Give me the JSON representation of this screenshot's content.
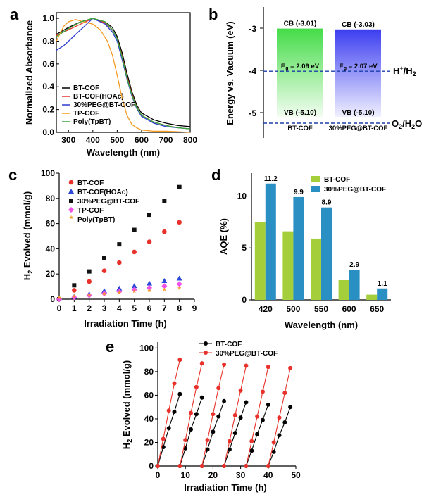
{
  "panels": {
    "a": "a",
    "b": "b",
    "c": "c",
    "d": "d",
    "e": "e"
  },
  "chart_data": [
    {
      "id": "a",
      "type": "line",
      "xlabel": "Wavelength (nm)",
      "ylabel": "Normalized Absorbance",
      "xlim": [
        250,
        800
      ],
      "ylim": [
        0,
        1.05
      ],
      "xticks": [
        300,
        400,
        500,
        600,
        700,
        800
      ],
      "yticks": [
        0.0,
        0.2,
        0.4,
        0.6,
        0.8,
        1.0
      ],
      "legend_position": "bottom-left",
      "series": [
        {
          "name": "BT-COF",
          "color": "#000000",
          "x": [
            250,
            300,
            350,
            400,
            450,
            480,
            500,
            520,
            540,
            560,
            580,
            600,
            650,
            700,
            750,
            800
          ],
          "y": [
            0.86,
            0.92,
            0.97,
            1.0,
            0.97,
            0.92,
            0.84,
            0.7,
            0.52,
            0.36,
            0.24,
            0.17,
            0.11,
            0.08,
            0.06,
            0.05
          ]
        },
        {
          "name": "BT-COF(HOAc)",
          "color": "#e8312a",
          "x": [
            250,
            300,
            350,
            400,
            450,
            480,
            500,
            520,
            540,
            560,
            580,
            600,
            650,
            700,
            750,
            800
          ],
          "y": [
            0.85,
            0.9,
            0.95,
            1.0,
            0.96,
            0.9,
            0.82,
            0.67,
            0.49,
            0.34,
            0.22,
            0.15,
            0.09,
            0.06,
            0.04,
            0.03
          ]
        },
        {
          "name": "30%PEG@BT-COF",
          "color": "#2d3bd0",
          "x": [
            250,
            280,
            300,
            350,
            400,
            450,
            480,
            500,
            520,
            540,
            560,
            580,
            600,
            650,
            700,
            750,
            800
          ],
          "y": [
            0.72,
            0.76,
            0.8,
            0.9,
            1.0,
            0.95,
            0.88,
            0.8,
            0.64,
            0.47,
            0.32,
            0.21,
            0.14,
            0.08,
            0.05,
            0.04,
            0.03
          ]
        },
        {
          "name": "TP-COF",
          "color": "#f59b1f",
          "x": [
            250,
            280,
            300,
            330,
            360,
            400,
            430,
            460,
            480,
            500,
            520,
            540,
            560,
            580,
            600,
            650,
            700,
            800
          ],
          "y": [
            0.8,
            0.93,
            0.97,
            0.99,
            0.97,
            0.95,
            0.9,
            0.8,
            0.68,
            0.5,
            0.3,
            0.15,
            0.07,
            0.04,
            0.02,
            0.01,
            0.01,
            0.0
          ]
        },
        {
          "name": "Poly(TpBT)",
          "color": "#3aa83a",
          "x": [
            250,
            300,
            350,
            400,
            450,
            480,
            500,
            520,
            540,
            560,
            580,
            600,
            650,
            700,
            750,
            800
          ],
          "y": [
            0.84,
            0.91,
            0.97,
            1.0,
            0.97,
            0.9,
            0.82,
            0.66,
            0.48,
            0.33,
            0.22,
            0.15,
            0.09,
            0.06,
            0.04,
            0.03
          ]
        }
      ]
    },
    {
      "id": "b",
      "type": "diagram",
      "ylabel": "Energy vs. Vacuum (eV)",
      "ylim": [
        -5.6,
        -2.5
      ],
      "yticks": [
        -3,
        -4,
        -5
      ],
      "reference_lines": [
        {
          "label": "H",
          "sup": "+",
          "tail": "/H",
          "sub": "2",
          "value": -4.02
        },
        {
          "label": "O",
          "sub": "2",
          "tail": "/H",
          "sub2": "2",
          "tail2": "O",
          "value": -5.25
        }
      ],
      "bars": [
        {
          "name": "BT-COF",
          "cb_label": "CB (-3.01)",
          "vb_label": "VB (-5.10)",
          "cb": -3.01,
          "vb": -5.1,
          "gap_prefix": "E",
          "gap_sub": "g",
          "gap_value": "= 2.09 eV",
          "color": "#57e05a"
        },
        {
          "name": "30%PEG@BT-COF",
          "cb_label": "CB (-3.03)",
          "vb_label": "VB (-5.10)",
          "cb": -3.03,
          "vb": -5.1,
          "gap_prefix": "E",
          "gap_sub": "g",
          "gap_value": "= 2.07 eV",
          "color": "#4a4ff2"
        }
      ]
    },
    {
      "id": "c",
      "type": "scatter",
      "xlabel": "Irradiation Time (h)",
      "ylabel_prefix": "H",
      "ylabel_sub": "2",
      "ylabel_rest": " Evolved (mmol/g)",
      "xlim": [
        0,
        9
      ],
      "ylim": [
        0,
        100
      ],
      "xticks": [
        0,
        1,
        2,
        3,
        4,
        5,
        6,
        7,
        8,
        9
      ],
      "yticks": [
        0,
        20,
        40,
        60,
        80,
        100
      ],
      "legend_position": "top-left",
      "series": [
        {
          "name": "BT-COF",
          "marker": "circle",
          "color": "#e8312a",
          "x": [
            0,
            1,
            2,
            3,
            4,
            5,
            6,
            7,
            8
          ],
          "y": [
            0,
            7,
            14,
            22.5,
            29,
            37.5,
            45.5,
            53.5,
            61
          ]
        },
        {
          "name": "BT-COF(HOAc)",
          "marker": "triangle",
          "color": "#2c48d8",
          "x": [
            0,
            1,
            2,
            3,
            4,
            5,
            6,
            7,
            8
          ],
          "y": [
            0,
            2,
            4,
            6.5,
            8.5,
            10.5,
            12.5,
            14.5,
            16.5
          ]
        },
        {
          "name": "30%PEG@BT-COF",
          "marker": "square",
          "color": "#111111",
          "x": [
            0,
            1,
            2,
            3,
            4,
            5,
            6,
            7,
            8
          ],
          "y": [
            0,
            11,
            22,
            32.5,
            43.5,
            55,
            67,
            78,
            89
          ]
        },
        {
          "name": "TP-COF",
          "marker": "diamond",
          "color": "#f04fe8",
          "x": [
            0,
            1,
            2,
            3,
            4,
            5,
            6,
            7,
            8
          ],
          "y": [
            0,
            1.5,
            3,
            4.5,
            6,
            7.5,
            9,
            10.5,
            12
          ]
        },
        {
          "name": "Poly(TpBT)",
          "marker": "star",
          "color": "#f59b1f",
          "x": [
            0,
            1,
            2,
            3,
            4,
            5,
            6,
            7,
            8
          ],
          "y": [
            0,
            1,
            2,
            3,
            4,
            5,
            5.5,
            6.5,
            7.5
          ]
        }
      ]
    },
    {
      "id": "d",
      "type": "bar",
      "xlabel": "Wavelength (nm)",
      "ylabel": "AQE (%)",
      "categories": [
        "420",
        "500",
        "550",
        "600",
        "650"
      ],
      "ylim": [
        0,
        12.2
      ],
      "yticks": [
        0,
        5,
        10
      ],
      "legend_position": "top-right",
      "series": [
        {
          "name": "BT-COF",
          "color": "#a5cf3a",
          "values": [
            7.5,
            6.6,
            5.9,
            1.9,
            0.5
          ]
        },
        {
          "name": "30%PEG@BT-COF",
          "color": "#2a8fc2",
          "values": [
            11.2,
            9.9,
            8.9,
            2.9,
            1.1
          ],
          "labels": [
            "11.2",
            "9.9",
            "8.9",
            "2.9",
            "1.1"
          ]
        }
      ]
    },
    {
      "id": "e",
      "type": "line",
      "xlabel": "Irradiation Time (h)",
      "ylabel_prefix": "H",
      "ylabel_sub": "2",
      "ylabel_rest": " Evolved (mmol/g)",
      "xlim": [
        0,
        50
      ],
      "ylim": [
        0,
        105
      ],
      "xticks": [
        0,
        10,
        20,
        30,
        40,
        50
      ],
      "yticks": [
        0,
        20,
        40,
        60,
        80,
        100
      ],
      "legend_position": "top",
      "cycle_hours": 8,
      "series": [
        {
          "name": "BT-COF",
          "color": "#000000",
          "cycles": [
            [
              0,
              16,
              32,
              46,
              61
            ],
            [
              0,
              15,
              31,
              44,
              58
            ],
            [
              0,
              14,
              29,
              42,
              55
            ],
            [
              0,
              14,
              28,
              41,
              54
            ],
            [
              0,
              13,
              27,
              39,
              52
            ],
            [
              0,
              12,
              26,
              37,
              50
            ]
          ]
        },
        {
          "name": "30%PEG@BT-COF",
          "color": "#e8312a",
          "cycles": [
            [
              0,
              23,
              47,
              70,
              90
            ],
            [
              0,
              22,
              45,
              67,
              87
            ],
            [
              0,
              22,
              44,
              66,
              86
            ],
            [
              0,
              21,
              43,
              64,
              85
            ],
            [
              0,
              21,
              42,
              63,
              84
            ],
            [
              0,
              20,
              41,
              62,
              83
            ]
          ]
        }
      ]
    }
  ]
}
